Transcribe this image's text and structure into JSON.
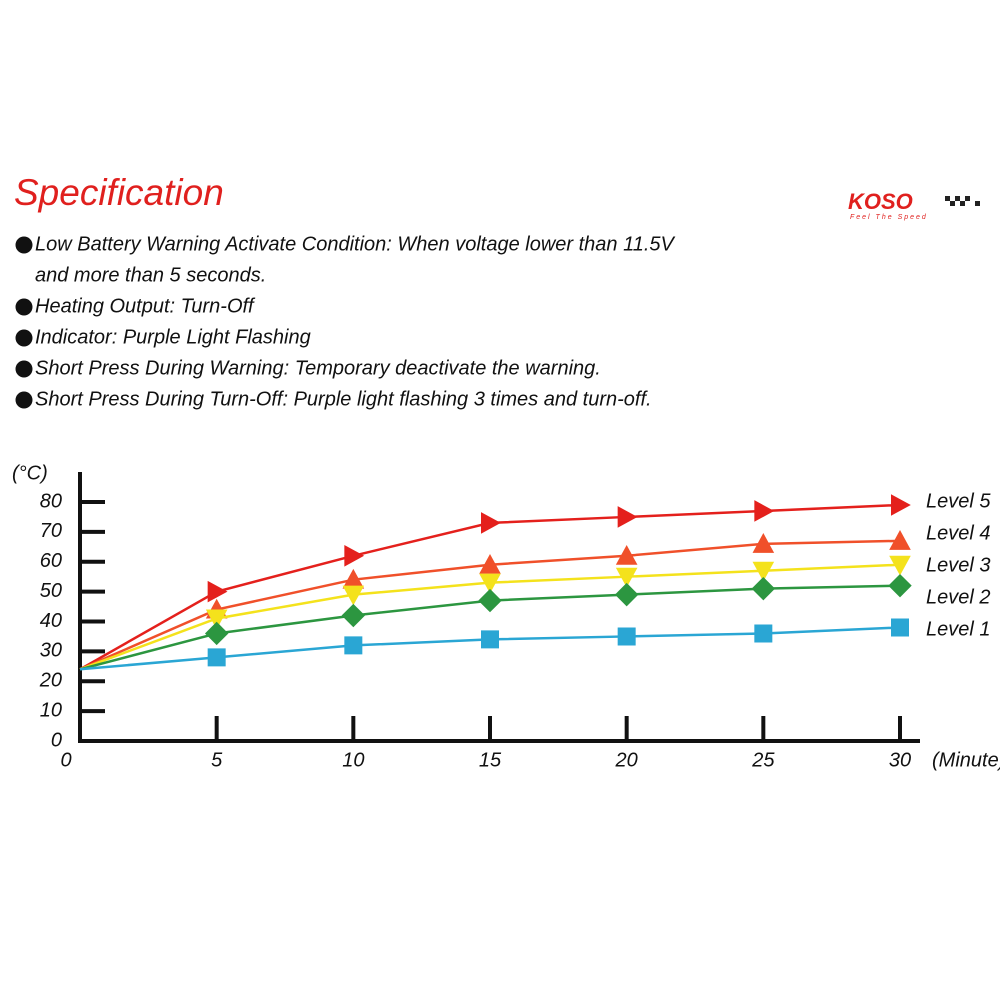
{
  "header": {
    "title": "Specification",
    "logo": "KOSO",
    "logo_tagline": "Feel The Speed"
  },
  "spec": [
    {
      "lines": [
        "Low Battery Warning Activate Condition: When voltage lower than 11.5V",
        "and more than 5 seconds."
      ]
    },
    {
      "lines": [
        "Heating Output: Turn-Off"
      ]
    },
    {
      "lines": [
        "Indicator: Purple Light Flashing"
      ]
    },
    {
      "lines": [
        "Short Press During Warning: Temporary deactivate the warning."
      ]
    },
    {
      "lines": [
        "Short Press During Turn-Off: Purple light flashing 3 times and turn-off."
      ]
    }
  ],
  "chart_data": {
    "type": "line",
    "y_label": "(°C)",
    "x_label": "(Minute)",
    "x": [
      0,
      5,
      10,
      15,
      20,
      25,
      30
    ],
    "xlim": [
      0,
      30
    ],
    "xticks": [
      0,
      5,
      10,
      15,
      20,
      25,
      30
    ],
    "ylim": [
      0,
      80
    ],
    "yticks": [
      0,
      10,
      20,
      30,
      40,
      50,
      60,
      70,
      80
    ],
    "series": [
      {
        "name": "Level 5",
        "color": "#e4201c",
        "marker": "triangle-right",
        "values": [
          24,
          50,
          62,
          73,
          75,
          77,
          79
        ]
      },
      {
        "name": "Level 4",
        "color": "#f0502a",
        "marker": "triangle-up",
        "values": [
          24,
          44,
          54,
          59,
          62,
          66,
          67
        ]
      },
      {
        "name": "Level 3",
        "color": "#f4e21c",
        "marker": "triangle-down",
        "values": [
          24,
          41,
          49,
          53,
          55,
          57,
          59
        ]
      },
      {
        "name": "Level 2",
        "color": "#2c9640",
        "marker": "diamond",
        "values": [
          24,
          36,
          42,
          47,
          49,
          51,
          52
        ]
      },
      {
        "name": "Level 1",
        "color": "#2aa6d4",
        "marker": "square",
        "values": [
          24,
          28,
          32,
          34,
          35,
          36,
          38
        ]
      }
    ]
  }
}
